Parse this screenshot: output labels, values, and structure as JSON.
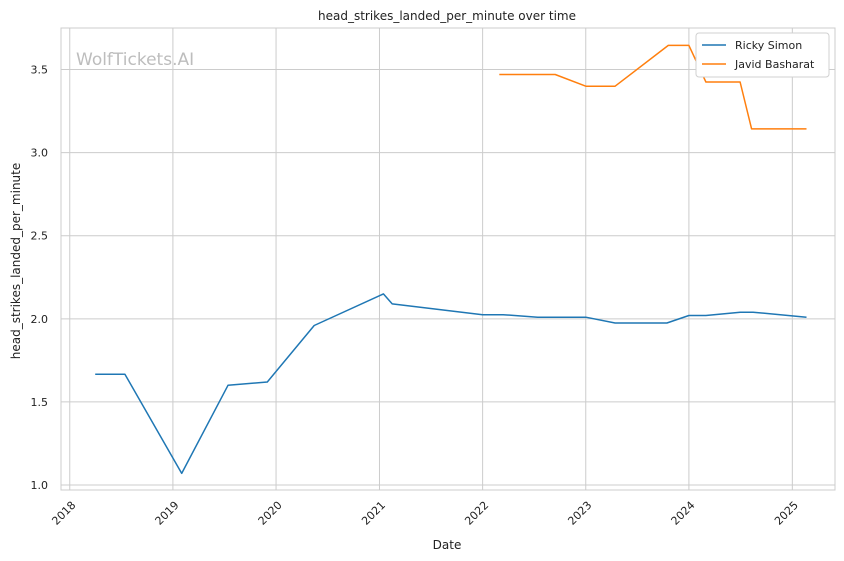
{
  "chart_data": {
    "type": "line",
    "title": "head_strikes_landed_per_minute over time",
    "xlabel": "Date",
    "ylabel": "head_strikes_landed_per_minute",
    "watermark": "WolfTickets.AI",
    "x_ticks": [
      "2018",
      "2019",
      "2020",
      "2021",
      "2022",
      "2023",
      "2024",
      "2025"
    ],
    "y_ticks": [
      "1.0",
      "1.5",
      "2.0",
      "2.5",
      "3.0",
      "3.5"
    ],
    "xlim": [
      "2017-12-01",
      "2025-06-01"
    ],
    "ylim": [
      0.97,
      3.75
    ],
    "grid": true,
    "legend_position": "top-right",
    "series": [
      {
        "name": "Ricky Simon",
        "color": "#1f77b4",
        "points": [
          [
            "2018-04-01",
            1.667
          ],
          [
            "2018-07-15",
            1.667
          ],
          [
            "2019-02-01",
            1.07
          ],
          [
            "2019-07-15",
            1.6
          ],
          [
            "2019-12-01",
            1.62
          ],
          [
            "2020-05-15",
            1.96
          ],
          [
            "2021-01-15",
            2.15
          ],
          [
            "2021-02-15",
            2.09
          ],
          [
            "2022-01-01",
            2.025
          ],
          [
            "2022-03-15",
            2.025
          ],
          [
            "2022-07-15",
            2.01
          ],
          [
            "2023-01-01",
            2.01
          ],
          [
            "2023-04-15",
            1.975
          ],
          [
            "2023-10-15",
            1.975
          ],
          [
            "2024-01-01",
            2.02
          ],
          [
            "2024-03-01",
            2.02
          ],
          [
            "2024-07-01",
            2.04
          ],
          [
            "2024-08-15",
            2.04
          ],
          [
            "2025-02-20",
            2.01
          ]
        ]
      },
      {
        "name": "Javid Basharat",
        "color": "#ff7f0e",
        "points": [
          [
            "2022-03-01",
            3.47
          ],
          [
            "2022-09-15",
            3.47
          ],
          [
            "2023-01-01",
            3.4
          ],
          [
            "2023-04-15",
            3.4
          ],
          [
            "2023-10-20",
            3.645
          ],
          [
            "2024-01-01",
            3.645
          ],
          [
            "2024-03-01",
            3.425
          ],
          [
            "2024-06-30",
            3.425
          ],
          [
            "2024-08-10",
            3.143
          ],
          [
            "2025-02-20",
            3.143
          ]
        ]
      }
    ]
  }
}
